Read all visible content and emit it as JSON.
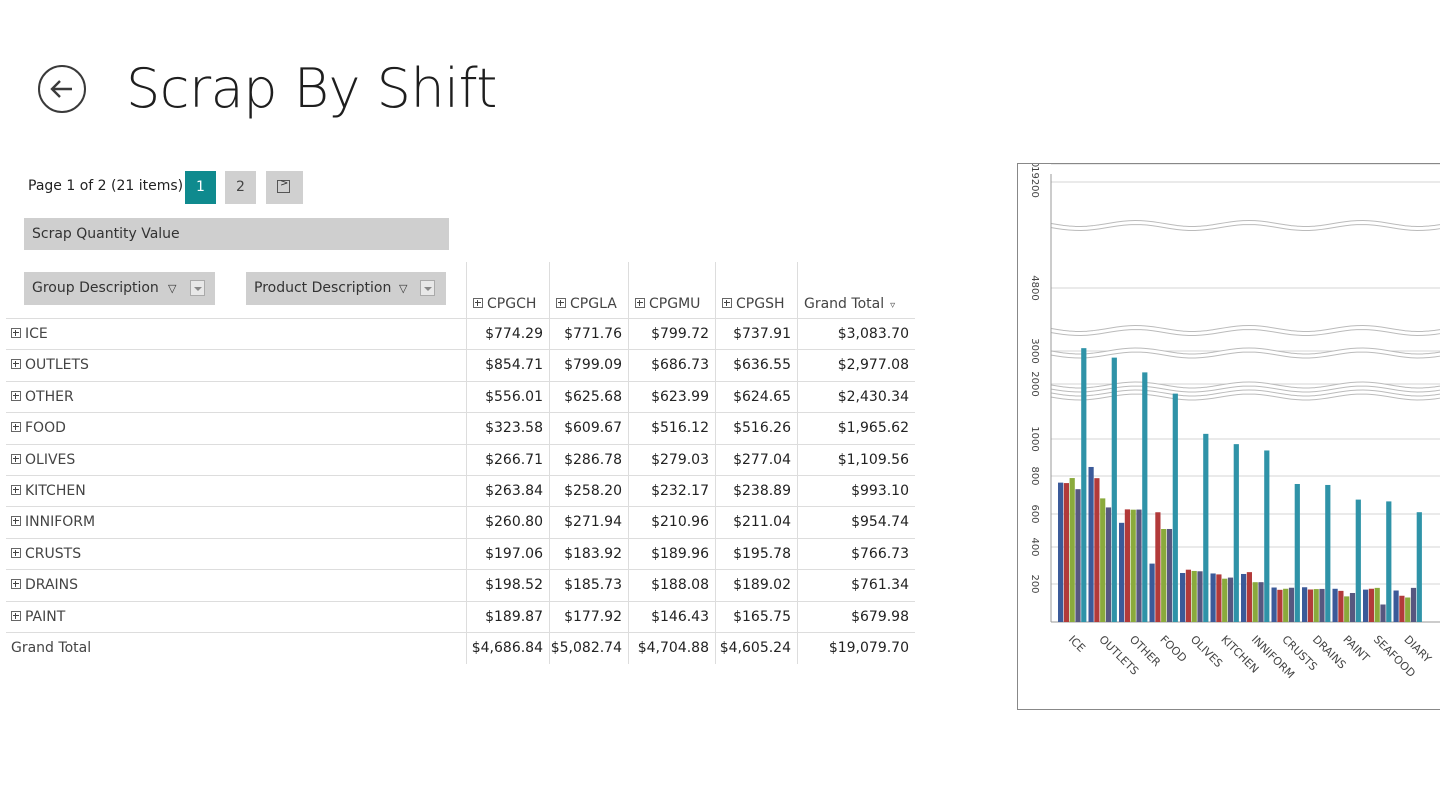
{
  "page": {
    "title": "Scrap By Shift"
  },
  "pager": {
    "info": "Page 1 of 2 (21 items)",
    "pages": [
      "1",
      "2"
    ],
    "active_page": "1"
  },
  "pivot": {
    "data_field": "Scrap Quantity Value",
    "row_fields": [
      "Group Description",
      "Product Description"
    ],
    "columns": [
      "CPGCH",
      "CPGLA",
      "CPGMU",
      "CPGSH",
      "Grand Total"
    ],
    "rows": [
      {
        "name": "ICE",
        "values": [
          "$774.29",
          "$771.76",
          "$799.72",
          "$737.91",
          "$3,083.70"
        ]
      },
      {
        "name": "OUTLETS",
        "values": [
          "$854.71",
          "$799.09",
          "$686.73",
          "$636.55",
          "$2,977.08"
        ]
      },
      {
        "name": "OTHER",
        "values": [
          "$556.01",
          "$625.68",
          "$623.99",
          "$624.65",
          "$2,430.34"
        ]
      },
      {
        "name": "FOOD",
        "values": [
          "$323.58",
          "$609.67",
          "$516.12",
          "$516.26",
          "$1,965.62"
        ]
      },
      {
        "name": "OLIVES",
        "values": [
          "$266.71",
          "$286.78",
          "$279.03",
          "$277.04",
          "$1,109.56"
        ]
      },
      {
        "name": "KITCHEN",
        "values": [
          "$263.84",
          "$258.20",
          "$232.17",
          "$238.89",
          "$993.10"
        ]
      },
      {
        "name": "INNIFORM",
        "values": [
          "$260.80",
          "$271.94",
          "$210.96",
          "$211.04",
          "$954.74"
        ]
      },
      {
        "name": "CRUSTS",
        "values": [
          "$197.06",
          "$183.92",
          "$189.96",
          "$195.78",
          "$766.73"
        ]
      },
      {
        "name": "DRAINS",
        "values": [
          "$198.52",
          "$185.73",
          "$188.08",
          "$189.02",
          "$761.34"
        ]
      },
      {
        "name": "PAINT",
        "values": [
          "$189.87",
          "$177.92",
          "$146.43",
          "$165.75",
          "$679.98"
        ]
      }
    ],
    "grand_total": {
      "name": "Grand Total",
      "values": [
        "$4,686.84",
        "$5,082.74",
        "$4,704.88",
        "$4,605.24",
        "$19,079.70"
      ]
    }
  },
  "colors": {
    "CPGCH": "#3b5a99",
    "CPGLA": "#b23a3a",
    "CPGMU": "#8aaa3c",
    "CPGSH": "#57577f",
    "Grand Total": "#2f93a8",
    "accent": "#0f8a8e"
  },
  "chart_data": {
    "type": "bar",
    "categories": [
      "ICE",
      "OUTLETS",
      "OTHER",
      "FOOD",
      "OLIVES",
      "KITCHEN",
      "INNIFORM",
      "CRUSTS",
      "DRAINS",
      "PAINT",
      "SEAFOOD",
      "DIARY"
    ],
    "series": [
      {
        "name": "CPGCH",
        "values": [
          774.29,
          854.71,
          556.01,
          323.58,
          266.71,
          263.84,
          260.8,
          197.06,
          198.52,
          189.87,
          185,
          180
        ]
      },
      {
        "name": "CPGLA",
        "values": [
          771.76,
          799.09,
          625.68,
          609.67,
          286.78,
          258.2,
          271.94,
          183.92,
          185.73,
          177.92,
          190,
          150
        ]
      },
      {
        "name": "CPGMU",
        "values": [
          799.72,
          686.73,
          623.99,
          516.12,
          279.03,
          232.17,
          210.96,
          189.96,
          188.08,
          146.43,
          195,
          140
        ]
      },
      {
        "name": "CPGSH",
        "values": [
          737.91,
          636.55,
          624.65,
          516.26,
          277.04,
          238.89,
          211.04,
          195.78,
          189.02,
          165.75,
          100,
          195
        ]
      },
      {
        "name": "Grand Total",
        "values": [
          3083.7,
          2977.08,
          2430.34,
          1965.62,
          1109.56,
          993.1,
          954.74,
          766.73,
          761.34,
          679.98,
          670,
          610
        ]
      }
    ],
    "y_ticks": [
      "0",
      "200",
      "400",
      "600",
      "800",
      "1000",
      "2000",
      "3000",
      "4800",
      "19200"
    ],
    "legend": "none",
    "grid": true
  }
}
